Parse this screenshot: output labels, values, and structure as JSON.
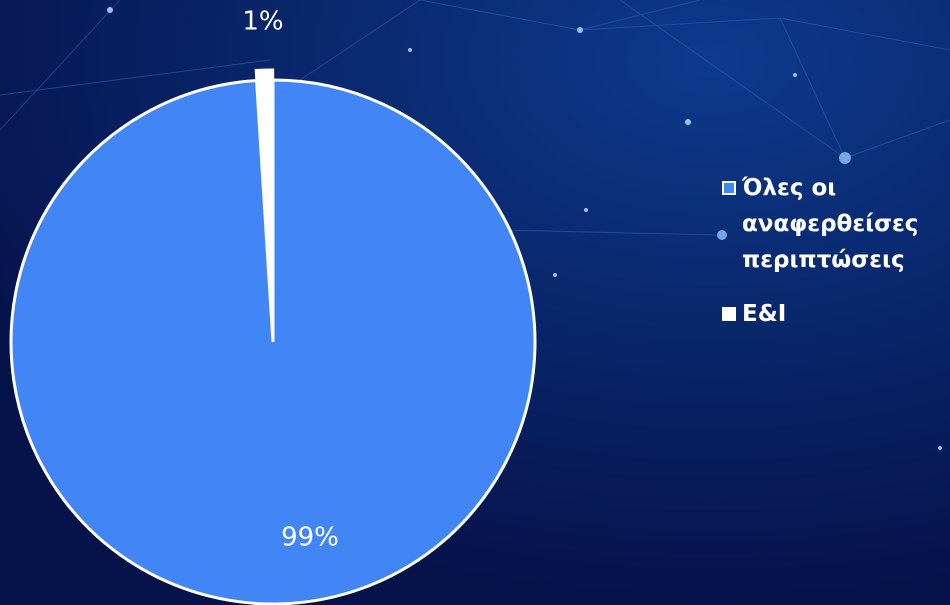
{
  "chart_data": {
    "type": "pie",
    "series": [
      {
        "name": "Όλες οι αναφερθείσες περιπτώσεις",
        "color": "#4285f4",
        "values": [
          99
        ],
        "value_labels": [
          "99%"
        ]
      },
      {
        "name": "Ε&Ι",
        "color": "#ffffff",
        "values": [
          1
        ],
        "value_labels": [
          "1%"
        ]
      }
    ]
  }
}
